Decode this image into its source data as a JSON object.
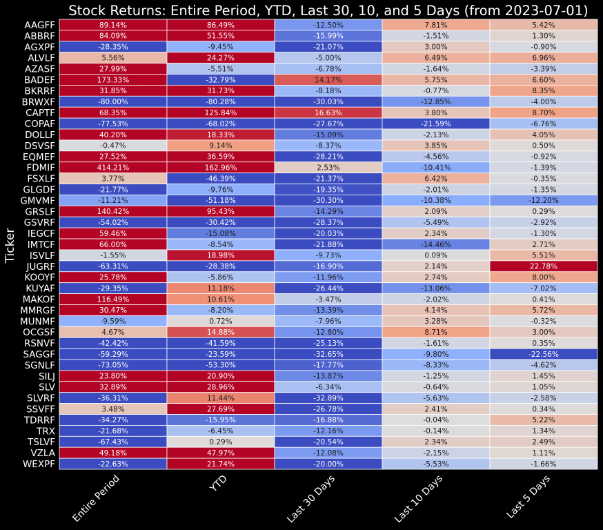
{
  "chart_data": {
    "type": "heatmap",
    "title": "Stock Returns: Entire Period, YTD, Last 30, 10, and 5 Days (from 2023-07-01)",
    "xlabel": "",
    "ylabel": "Ticker",
    "colormap": "coolwarm",
    "color_range": [
      -20,
      20
    ],
    "value_format": "percent_2dp",
    "columns": [
      "Entire Period",
      "YTD",
      "Last 30 Days",
      "Last 10 Days",
      "Last 5 Days"
    ],
    "rows": [
      "AAGFF",
      "ABBRF",
      "AGXPF",
      "ALVLF",
      "AZASF",
      "BADEF",
      "BKRRF",
      "BRWXF",
      "CAPTF",
      "COPAF",
      "DOLLF",
      "DSVSF",
      "EQMEF",
      "FDMIF",
      "FSXLF",
      "GLGDF",
      "GMVMF",
      "GRSLF",
      "GSVRF",
      "IEGCF",
      "IMTCF",
      "ISVLF",
      "JUGRF",
      "KOOYF",
      "KUYAF",
      "MAKOF",
      "MMRGF",
      "MUNMF",
      "OCGSF",
      "RSNVF",
      "SAGGF",
      "SGNLF",
      "SILJ",
      "SLV",
      "SLVRF",
      "SSVFF",
      "TDRRF",
      "TRX",
      "TSLVF",
      "VZLA",
      "WEXPF"
    ],
    "values": [
      [
        89.14,
        86.49,
        -12.5,
        7.81,
        5.42
      ],
      [
        84.09,
        51.55,
        -15.99,
        -1.51,
        1.3
      ],
      [
        -28.35,
        -9.45,
        -21.07,
        3.0,
        -0.9
      ],
      [
        5.56,
        24.27,
        -5.0,
        6.49,
        6.96
      ],
      [
        27.99,
        -5.51,
        -6.78,
        -1.64,
        -3.39
      ],
      [
        173.33,
        -32.79,
        14.17,
        5.75,
        6.6
      ],
      [
        31.85,
        31.73,
        -8.18,
        -0.77,
        8.35
      ],
      [
        -80.0,
        -80.28,
        -30.03,
        -12.85,
        -4.0
      ],
      [
        68.35,
        125.84,
        16.63,
        3.8,
        8.7
      ],
      [
        -77.53,
        -68.02,
        -27.67,
        -21.59,
        -6.76
      ],
      [
        40.2,
        18.33,
        -15.09,
        -2.13,
        4.05
      ],
      [
        -0.47,
        9.14,
        -8.37,
        3.85,
        0.5
      ],
      [
        27.52,
        36.59,
        -28.21,
        -4.56,
        -0.92
      ],
      [
        414.21,
        162.96,
        2.53,
        -10.41,
        -1.39
      ],
      [
        3.77,
        -46.39,
        -21.37,
        6.42,
        -0.35
      ],
      [
        -21.77,
        -9.76,
        -19.35,
        -2.01,
        -1.35
      ],
      [
        -11.21,
        -51.18,
        -30.3,
        -10.38,
        -12.2
      ],
      [
        140.42,
        95.43,
        -14.29,
        2.09,
        0.29
      ],
      [
        -54.02,
        -30.42,
        -28.37,
        -5.49,
        -2.92
      ],
      [
        59.46,
        -15.08,
        -20.03,
        2.34,
        -1.3
      ],
      [
        66.0,
        -8.54,
        -21.88,
        -14.46,
        2.71
      ],
      [
        -1.55,
        18.98,
        -9.73,
        0.09,
        5.51
      ],
      [
        -63.31,
        -28.38,
        -16.9,
        2.14,
        22.78
      ],
      [
        25.78,
        -5.86,
        -11.96,
        2.74,
        8.0
      ],
      [
        -29.35,
        11.18,
        -26.44,
        -13.06,
        -7.02
      ],
      [
        116.49,
        10.61,
        -3.47,
        -2.02,
        0.41
      ],
      [
        30.47,
        -8.2,
        -13.39,
        4.14,
        5.72
      ],
      [
        -9.59,
        0.72,
        -7.96,
        3.28,
        -0.32
      ],
      [
        4.67,
        14.88,
        -12.8,
        8.71,
        3.0
      ],
      [
        -42.42,
        -41.59,
        -25.13,
        -1.61,
        0.35
      ],
      [
        -59.29,
        -23.59,
        -32.65,
        -9.8,
        -22.56
      ],
      [
        -73.05,
        -53.3,
        -17.77,
        -8.33,
        -4.62
      ],
      [
        23.8,
        20.9,
        -13.87,
        -1.25,
        1.45
      ],
      [
        32.89,
        28.96,
        -6.34,
        -0.64,
        1.05
      ],
      [
        -36.31,
        11.44,
        -32.89,
        -5.63,
        -2.58
      ],
      [
        3.48,
        27.69,
        -26.78,
        2.41,
        0.34
      ],
      [
        -34.27,
        -15.95,
        -16.88,
        -0.04,
        5.22
      ],
      [
        -21.68,
        -6.45,
        -12.16,
        -0.14,
        1.34
      ],
      [
        -67.43,
        0.29,
        -20.54,
        2.34,
        2.49
      ],
      [
        49.18,
        47.97,
        -12.08,
        -2.15,
        1.11
      ],
      [
        -22.63,
        21.74,
        -20.0,
        -5.53,
        -1.66
      ]
    ]
  },
  "colors": {
    "background": "#000000",
    "text": "#ffffff",
    "cell_border": "#ffffff"
  }
}
